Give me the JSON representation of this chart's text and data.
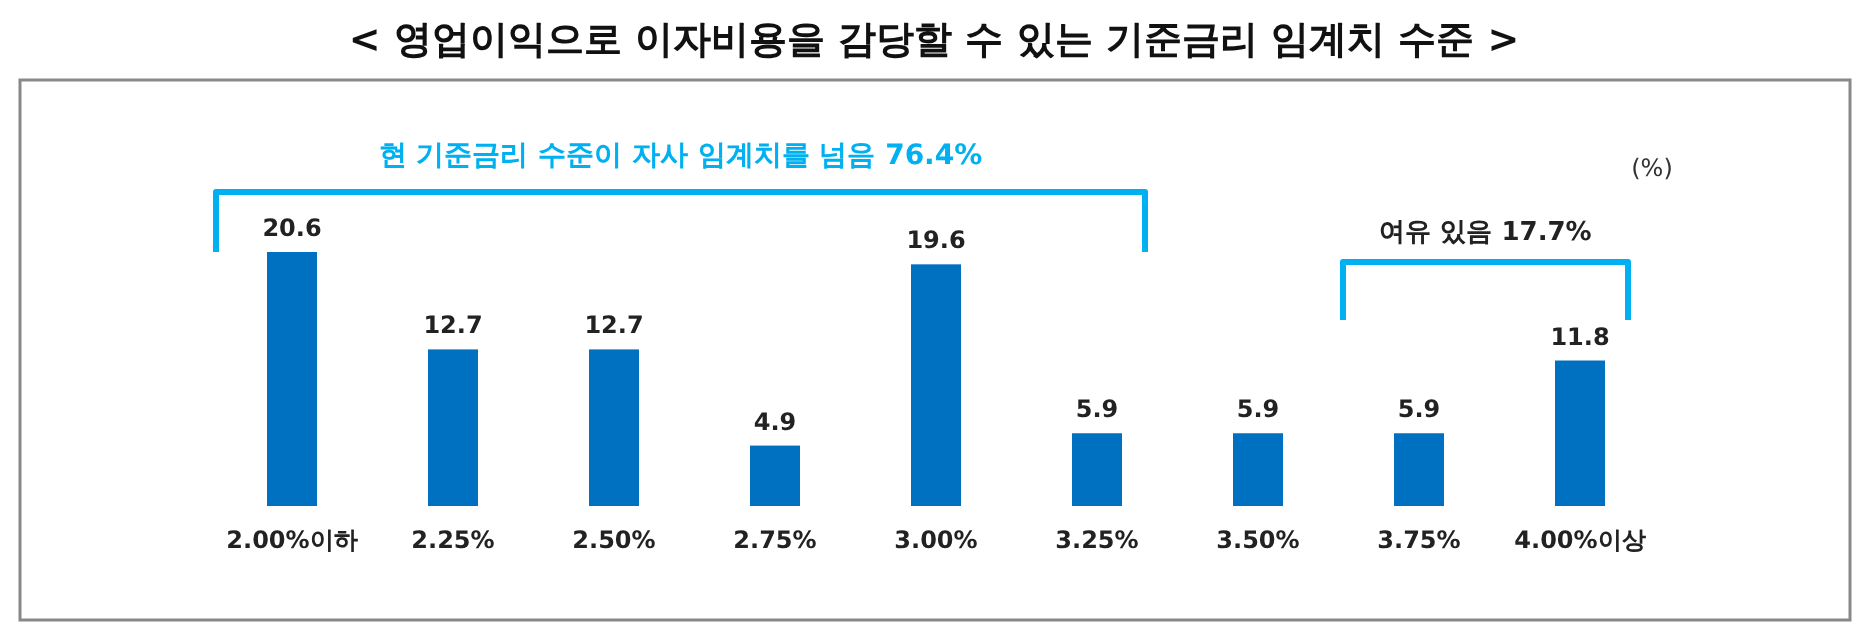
{
  "chart_data": {
    "type": "bar",
    "title": "< 영업이익으로 이자비용을 감당할 수 있는 기준금리 임계치 수준 >",
    "categories": [
      "2.00%이하",
      "2.25%",
      "2.50%",
      "2.75%",
      "3.00%",
      "3.25%",
      "3.50%",
      "3.75%",
      "4.00%이상"
    ],
    "values": [
      20.6,
      12.7,
      12.7,
      4.9,
      19.6,
      5.9,
      5.9,
      5.9,
      11.8
    ],
    "color": "#0070c0",
    "data_labels": true,
    "annotations": [
      "현 기준금리 수준이 자사 임계치를 넘음 76.4%",
      "여유 있음 17.7%",
      "(%)"
    ]
  }
}
